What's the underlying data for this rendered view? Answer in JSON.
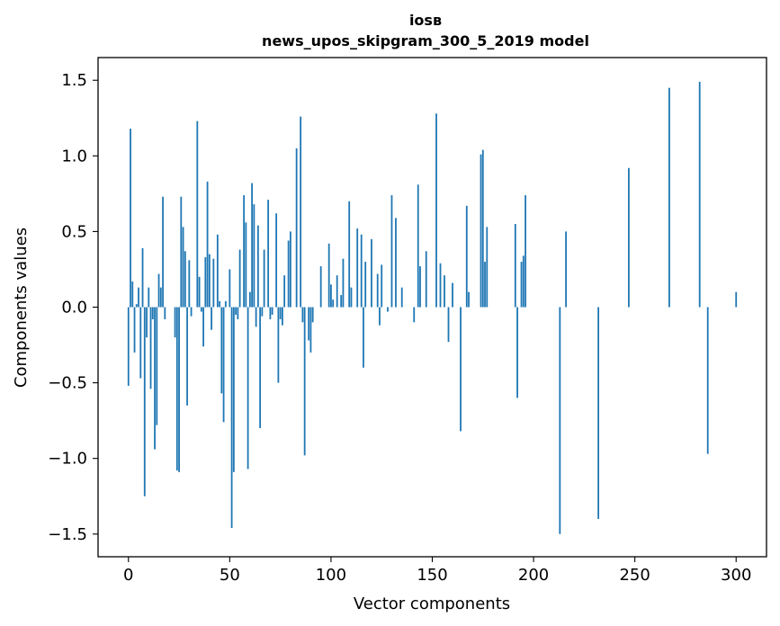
{
  "chart_data": {
    "type": "bar",
    "title_line1": "iosв",
    "title_line2": "news_upos_skipgram_300_5_2019 model",
    "xlabel": "Vector components",
    "ylabel": "Components values",
    "xlim": [
      -15,
      315
    ],
    "ylim": [
      -1.65,
      1.65
    ],
    "x_ticks": [
      0,
      50,
      100,
      150,
      200,
      250,
      300
    ],
    "x_tick_labels": [
      "0",
      "50",
      "100",
      "150",
      "200",
      "250",
      "300"
    ],
    "y_ticks": [
      -1.5,
      -1.0,
      -0.5,
      0.0,
      0.5,
      1.0,
      1.5
    ],
    "y_tick_labels": [
      "−1.5",
      "−1.0",
      "−0.5",
      "0.0",
      "0.5",
      "1.0",
      "1.5"
    ],
    "bar_color": "#1f77b4",
    "values": [
      -0.52,
      1.18,
      0.17,
      -0.3,
      0.02,
      0.13,
      -0.47,
      0.39,
      -1.25,
      -0.2,
      0.13,
      -0.54,
      -0.08,
      -0.94,
      -0.78,
      0.22,
      0.13,
      0.73,
      -0.08,
      0.0,
      0.0,
      0.0,
      0.0,
      -0.2,
      -1.08,
      -1.09,
      0.73,
      0.53,
      0.37,
      -0.65,
      0.31,
      -0.06,
      0.0,
      0.0,
      1.23,
      0.2,
      -0.03,
      -0.26,
      0.33,
      0.83,
      0.35,
      -0.15,
      0.32,
      0.0,
      0.48,
      0.04,
      -0.57,
      -0.76,
      0.04,
      0.0,
      0.25,
      -1.46,
      -1.09,
      -0.05,
      -0.08,
      0.38,
      0.0,
      0.74,
      0.56,
      -1.07,
      0.1,
      0.82,
      0.68,
      -0.13,
      0.54,
      -0.8,
      -0.06,
      0.38,
      0.0,
      0.71,
      -0.08,
      -0.05,
      0.0,
      0.62,
      -0.5,
      -0.08,
      -0.12,
      0.21,
      0.0,
      0.44,
      0.5,
      0.0,
      0.0,
      1.05,
      0.0,
      1.26,
      -0.1,
      -0.98,
      0.0,
      -0.22,
      -0.3,
      -0.1,
      0.0,
      0.0,
      0.0,
      0.27,
      0.0,
      0.0,
      0.0,
      0.42,
      0.15,
      0.05,
      0.0,
      0.21,
      0.0,
      0.08,
      0.32,
      0.0,
      0.0,
      0.7,
      0.13,
      0.0,
      0.0,
      0.52,
      0.0,
      0.48,
      -0.4,
      0.3,
      0.0,
      0.0,
      0.45,
      0.0,
      0.0,
      0.22,
      -0.12,
      0.28,
      0.0,
      0.0,
      -0.03,
      0.0,
      0.74,
      0.0,
      0.59,
      0.0,
      0.0,
      0.13,
      0.0,
      0.0,
      0.0,
      0.0,
      0.0,
      -0.1,
      0.0,
      0.81,
      0.27,
      0.0,
      0.0,
      0.37,
      0.0,
      0.0,
      0.0,
      0.0,
      1.28,
      0.0,
      0.29,
      0.0,
      0.21,
      0.0,
      -0.23,
      0.0,
      0.16,
      0.0,
      0.0,
      0.0,
      -0.82,
      0.0,
      0.0,
      0.67,
      0.1,
      0.0,
      0.0,
      0.0,
      0.0,
      0.0,
      1.01,
      1.04,
      0.3,
      0.53,
      0.0,
      0.0,
      0.0,
      0.0,
      0.0,
      0.0,
      0.0,
      0.0,
      0.0,
      0.0,
      0.0,
      0.0,
      0.0,
      0.55,
      -0.6,
      0.0,
      0.3,
      0.34,
      0.74,
      0.0,
      0.0,
      0.0,
      0.0,
      0.0,
      0.0,
      0.0,
      0.0,
      0.0,
      0.0,
      0.0,
      0.0,
      0.0,
      0.0,
      0.0,
      0.0,
      -1.5,
      0.0,
      0.0,
      0.5,
      0.0,
      0.0,
      0.0,
      0.0,
      0.0,
      0.0,
      0.0,
      0.0,
      0.0,
      0.0,
      0.0,
      0.0,
      0.0,
      0.0,
      0.0,
      -1.4,
      0.0,
      0.0,
      0.0,
      0.0,
      0.0,
      0.0,
      0.0,
      0.0,
      0.0,
      0.0,
      0.0,
      0.0,
      0.0,
      0.0,
      0.92,
      0.0,
      0.0,
      0.0,
      0.0,
      0.0,
      0.0,
      0.0,
      0.0,
      0.0,
      0.0,
      0.0,
      0.0,
      0.0,
      0.0,
      0.0,
      0.0,
      0.0,
      0.0,
      0.0,
      1.45,
      0.0,
      0.0,
      0.0,
      0.0,
      0.0,
      0.0,
      0.0,
      0.0,
      0.0,
      0.0,
      0.0,
      0.0,
      0.0,
      0.0,
      1.49,
      0.0,
      0.0,
      0.0,
      -0.97,
      0.0,
      0.0,
      0.0,
      0.0,
      0.0,
      0.0,
      0.0,
      0.0,
      0.0,
      0.0,
      0.0,
      0.0,
      0.0,
      0.1
    ]
  }
}
